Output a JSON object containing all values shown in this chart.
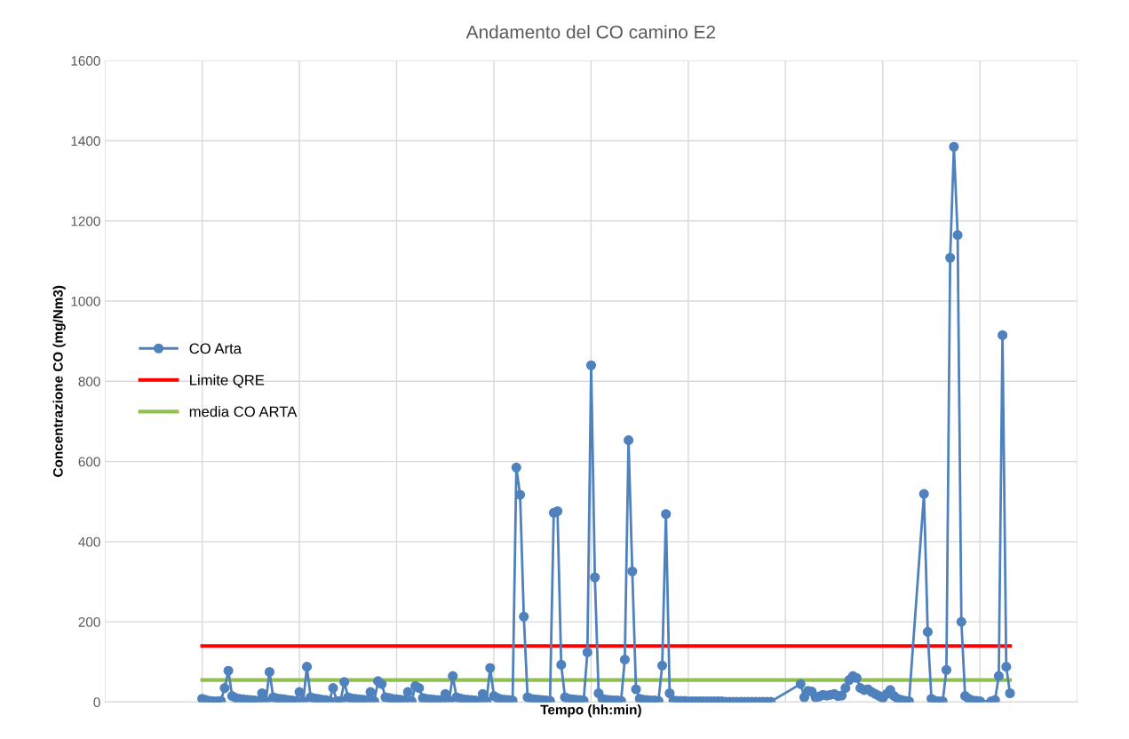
{
  "chart_data": {
    "type": "line",
    "title": "Andamento del CO camino E2",
    "xlabel": "Tempo (hh:min)",
    "ylabel": "Concentrazione CO (mg/Nm3)",
    "categories": [
      null,
      null,
      null,
      null,
      null,
      null,
      null,
      null,
      null,
      null,
      null,
      null,
      null,
      null,
      null,
      null,
      null,
      null,
      null,
      null,
      null,
      null,
      null,
      null,
      null,
      null,
      null,
      null,
      null,
      null,
      null,
      null,
      null,
      null,
      null,
      null,
      null,
      null,
      null,
      null,
      null,
      null,
      null,
      null,
      null,
      null,
      null,
      null,
      null,
      null,
      null,
      null,
      null,
      null,
      null,
      null,
      null,
      null,
      null,
      null,
      null,
      null,
      null,
      null,
      null,
      null,
      null,
      null,
      null,
      null,
      null,
      null,
      null,
      null,
      null,
      null,
      null,
      null,
      null,
      null,
      null,
      null,
      null,
      null,
      null,
      null,
      null,
      null,
      null,
      null,
      null,
      null,
      null,
      null,
      null,
      null,
      null,
      null,
      null,
      null,
      null,
      null,
      null,
      null,
      null,
      null,
      null,
      null,
      null,
      null,
      null,
      null,
      null,
      null,
      null,
      null,
      null,
      null,
      null,
      null,
      null,
      null,
      null,
      null,
      null,
      null,
      null,
      null,
      null,
      null,
      null,
      null,
      null,
      null,
      null,
      null,
      null,
      null,
      null,
      null,
      null,
      null,
      null,
      null,
      null,
      null,
      null,
      null,
      null,
      null,
      null,
      null,
      null,
      null,
      null,
      null,
      null,
      null,
      null,
      null,
      null,
      null,
      null,
      null,
      null,
      null,
      null,
      null,
      null,
      null,
      null,
      null,
      null,
      null,
      null,
      null,
      null,
      null,
      null,
      null,
      null,
      null,
      null,
      null,
      null,
      null,
      null,
      null,
      null,
      null,
      null,
      null,
      null,
      null,
      null,
      null,
      null,
      null,
      null,
      null,
      null,
      null,
      null,
      null,
      null,
      null,
      null,
      null,
      null,
      null,
      null,
      null,
      null,
      null,
      null,
      null,
      null
    ],
    "series": [
      {
        "name": "CO Arta",
        "color": "#4f81bd",
        "values": [
          8,
          5,
          3,
          2,
          2,
          3,
          35,
          78,
          15,
          10,
          8,
          7,
          6,
          5,
          4,
          3,
          22,
          2,
          75,
          12,
          9,
          8,
          7,
          5,
          4,
          3,
          25,
          2,
          88,
          12,
          9,
          8,
          6,
          5,
          3,
          35,
          2,
          3,
          50,
          12,
          9,
          8,
          7,
          6,
          5,
          25,
          2,
          52,
          45,
          12,
          10,
          8,
          7,
          6,
          5,
          25,
          2,
          40,
          35,
          10,
          8,
          7,
          6,
          5,
          4,
          20,
          3,
          65,
          12,
          9,
          7,
          6,
          5,
          4,
          3,
          20,
          2,
          85,
          15,
          10,
          7,
          6,
          5,
          4,
          585,
          517,
          213,
          12,
          8,
          7,
          6,
          5,
          4,
          3,
          472,
          476,
          93,
          12,
          8,
          7,
          6,
          5,
          4,
          124,
          840,
          311,
          22,
          8,
          6,
          5,
          4,
          4,
          3,
          106,
          653,
          326,
          32,
          8,
          6,
          5,
          4,
          4,
          3,
          91,
          469,
          22,
          4,
          3,
          3,
          3,
          2,
          2,
          2,
          2,
          2,
          2,
          2,
          2,
          2,
          2,
          1,
          1,
          1,
          1,
          1,
          1,
          1,
          1,
          1,
          1,
          1,
          1,
          1,
          null,
          null,
          null,
          null,
          null,
          null,
          null,
          45,
          12,
          28,
          26,
          12,
          14,
          18,
          16,
          18,
          20,
          15,
          16,
          35,
          55,
          65,
          60,
          35,
          30,
          32,
          25,
          20,
          15,
          10,
          20,
          30,
          15,
          8,
          5,
          3,
          2,
          null,
          null,
          null,
          519,
          175,
          8,
          3,
          2,
          2,
          80,
          1108,
          1385,
          1165,
          200,
          15,
          8,
          4,
          3,
          2,
          null,
          null,
          2,
          5,
          65,
          915,
          88,
          22
        ]
      }
    ],
    "ref_lines": [
      {
        "axis": "y",
        "value": 140,
        "label": "Limite QRE",
        "color": "#ff0000"
      },
      {
        "axis": "y",
        "value": 55,
        "label": "media CO ARTA",
        "color": "#92c050"
      }
    ],
    "ylim": [
      0,
      1600
    ],
    "yticks": [
      0,
      200,
      400,
      600,
      800,
      1000,
      1200,
      1400,
      1600
    ],
    "grid": true,
    "legend": "left",
    "marker": "circle",
    "line_style": "solid",
    "tick_labels": "y"
  }
}
